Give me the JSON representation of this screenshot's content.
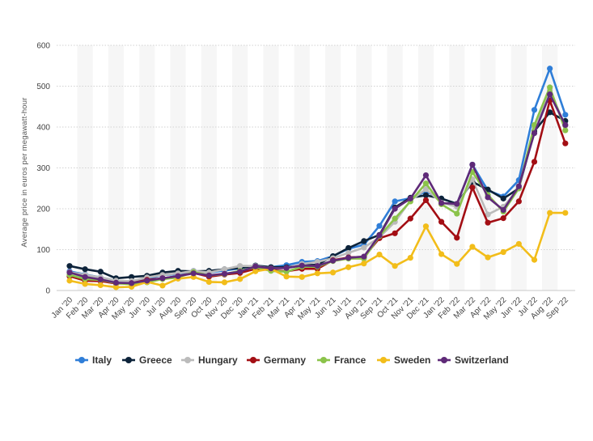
{
  "chart_data": {
    "type": "line",
    "title": "",
    "xlabel": "",
    "ylabel": "Average price in euros per megawatt-hour",
    "ylim": [
      0,
      600
    ],
    "yticks": [
      0,
      100,
      200,
      300,
      400,
      500,
      600
    ],
    "grid": "horizontal dotted",
    "legend_position": "bottom",
    "categories": [
      "Jan '20",
      "Feb '20",
      "Mar '20",
      "Apr '20",
      "May '20",
      "Jun '20",
      "Jul '20",
      "Aug '20",
      "Sep '20",
      "Oct '20",
      "Nov '20",
      "Dec '20",
      "Jan '21",
      "Feb '21",
      "Mar '21",
      "Apr '21",
      "May '21",
      "Jun '21",
      "Jul '21",
      "Aug '21",
      "Sep '21",
      "Oct '21",
      "Nov '21",
      "Dec '21",
      "Jan '22",
      "Feb '22",
      "Mar '22",
      "Apr '22",
      "May '22",
      "Jun '22",
      "Jul '22",
      "Aug '22",
      "Sep '22"
    ],
    "series": [
      {
        "name": "Italy",
        "color": "#2f7ed8",
        "values": [
          47,
          39,
          32,
          24,
          21,
          28,
          38,
          40,
          48,
          44,
          49,
          54,
          61,
          57,
          62,
          70,
          72,
          84,
          102,
          112,
          158,
          218,
          226,
          242,
          225,
          212,
          308,
          245,
          230,
          270,
          442,
          543,
          430
        ]
      },
      {
        "name": "Greece",
        "color": "#0d233a",
        "values": [
          60,
          52,
          46,
          30,
          33,
          36,
          44,
          48,
          47,
          48,
          52,
          55,
          61,
          57,
          57,
          62,
          63,
          84,
          104,
          121,
          136,
          203,
          227,
          233,
          225,
          212,
          266,
          247,
          225,
          250,
          390,
          436,
          415
        ]
      },
      {
        "name": "Hungary",
        "color": "#bbbbbb",
        "values": [
          45,
          38,
          32,
          24,
          23,
          32,
          38,
          42,
          48,
          44,
          52,
          60,
          60,
          54,
          55,
          65,
          70,
          79,
          92,
          105,
          130,
          168,
          220,
          248,
          215,
          205,
          272,
          186,
          205,
          250,
          400,
          490,
          403
        ]
      },
      {
        "name": "Germany",
        "color": "#a30e14",
        "values": [
          35,
          24,
          23,
          17,
          18,
          26,
          30,
          35,
          43,
          34,
          39,
          43,
          53,
          50,
          47,
          53,
          53,
          74,
          81,
          82,
          128,
          140,
          176,
          221,
          168,
          129,
          252,
          166,
          177,
          218,
          315,
          465,
          360
        ]
      },
      {
        "name": "France",
        "color": "#8bc34a",
        "values": [
          38,
          28,
          26,
          18,
          15,
          20,
          28,
          32,
          45,
          37,
          40,
          48,
          57,
          48,
          46,
          58,
          58,
          72,
          78,
          78,
          133,
          176,
          218,
          262,
          211,
          188,
          290,
          234,
          193,
          250,
          405,
          497,
          392
        ]
      },
      {
        "name": "Sweden",
        "color": "#f2bd1a",
        "values": [
          24,
          16,
          13,
          8,
          9,
          21,
          12,
          29,
          33,
          21,
          20,
          28,
          47,
          53,
          34,
          33,
          42,
          44,
          57,
          66,
          88,
          60,
          80,
          157,
          89,
          65,
          107,
          81,
          94,
          114,
          75,
          190,
          190
        ]
      },
      {
        "name": "Switzerland",
        "color": "#5f2a78",
        "values": [
          44,
          33,
          27,
          19,
          18,
          24,
          30,
          35,
          42,
          37,
          41,
          46,
          59,
          54,
          55,
          61,
          60,
          73,
          80,
          83,
          135,
          200,
          225,
          282,
          214,
          212,
          308,
          228,
          197,
          255,
          385,
          480,
          405
        ]
      }
    ]
  }
}
